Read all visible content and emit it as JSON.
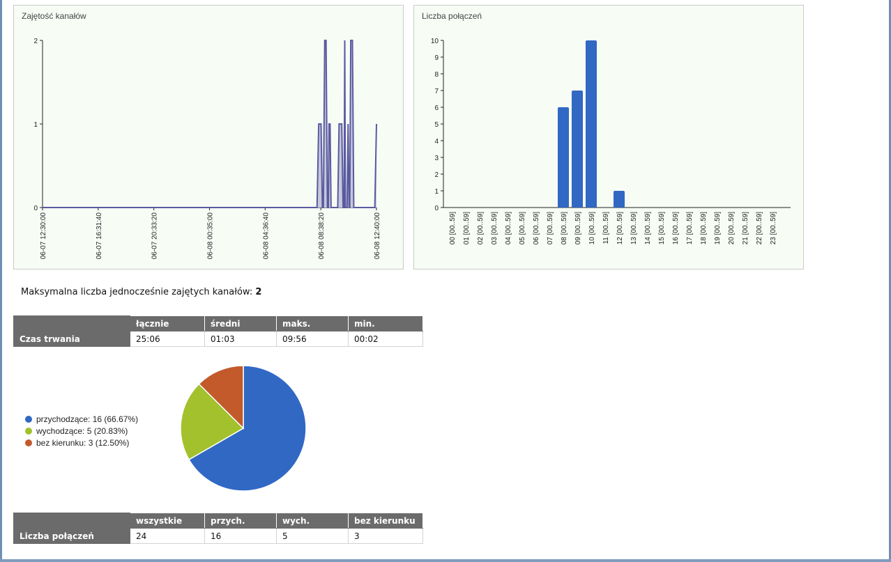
{
  "occupancy_panel": {
    "title": "Zajętość kanałów",
    "chart_data": {
      "type": "area",
      "yticks": [
        "0",
        "1",
        "2"
      ],
      "ylim": [
        0,
        2
      ],
      "xticks": [
        "06-07 12:30:00",
        "06-07 16:31:40",
        "06-07 20:33:20",
        "06-08 00:35:00",
        "06-08 04:36:40",
        "06-08 08:38:20",
        "06-08 12:40:00"
      ],
      "series_color": "#5a5aa0",
      "fill_color": "#c6c8dc",
      "points": [
        [
          0,
          0
        ],
        [
          0.822,
          0
        ],
        [
          0.827,
          1
        ],
        [
          0.834,
          1
        ],
        [
          0.838,
          0
        ],
        [
          0.841,
          0
        ],
        [
          0.845,
          2
        ],
        [
          0.849,
          2
        ],
        [
          0.853,
          0
        ],
        [
          0.856,
          0
        ],
        [
          0.858,
          1
        ],
        [
          0.861,
          1
        ],
        [
          0.864,
          0
        ],
        [
          0.884,
          0
        ],
        [
          0.888,
          1
        ],
        [
          0.896,
          1
        ],
        [
          0.9,
          0
        ],
        [
          0.903,
          0
        ],
        [
          0.905,
          2
        ],
        [
          0.907,
          0
        ],
        [
          0.912,
          0
        ],
        [
          0.915,
          1
        ],
        [
          0.918,
          0
        ],
        [
          0.92,
          0
        ],
        [
          0.923,
          2
        ],
        [
          0.928,
          2
        ],
        [
          0.932,
          0
        ],
        [
          0.949,
          0
        ],
        [
          0.995,
          0
        ],
        [
          1,
          1
        ]
      ]
    }
  },
  "connections_panel": {
    "title": "Liczba połączeń",
    "chart_data": {
      "type": "bar",
      "categories": [
        "00 [00..59]",
        "01 [00..59]",
        "02 [00..59]",
        "03 [00..59]",
        "04 [00..59]",
        "05 [00..59]",
        "06 [00..59]",
        "07 [00..59]",
        "08 [00..59]",
        "09 [00..59]",
        "10 [00..59]",
        "11 [00..59]",
        "12 [00..59]",
        "13 [00..59]",
        "14 [00..59]",
        "15 [00..59]",
        "16 [00..59]",
        "17 [00..59]",
        "18 [00..59]",
        "19 [00..59]",
        "20 [00..59]",
        "21 [00..59]",
        "22 [00..59]",
        "23 [00..59]"
      ],
      "values": [
        0,
        0,
        0,
        0,
        0,
        0,
        0,
        0,
        6,
        7,
        10,
        0,
        1,
        0,
        0,
        0,
        0,
        0,
        0,
        0,
        0,
        0,
        0,
        0
      ],
      "ylim": [
        0,
        10
      ],
      "yticks": [
        "0",
        "1",
        "2",
        "3",
        "4",
        "5",
        "6",
        "7",
        "8",
        "9",
        "10"
      ],
      "bar_color": "#3068c4"
    }
  },
  "max_channels": {
    "label": "Maksymalna liczba jednocześnie zajętych kanałów:",
    "value": "2"
  },
  "duration_table": {
    "headers": [
      "",
      "łącznie",
      "średni",
      "maks.",
      "min."
    ],
    "row_label": "Czas trwania",
    "values": [
      "25:06",
      "01:03",
      "09:56",
      "00:02"
    ]
  },
  "direction_pie": {
    "chart_data": {
      "type": "pie",
      "slices": [
        {
          "label": "przychodzące: 16 (66.67%)",
          "value": 16,
          "color": "#3068c4"
        },
        {
          "label": "wychodzące: 5 (20.83%)",
          "value": 5,
          "color": "#a3c12d"
        },
        {
          "label": "bez kierunku: 3 (12.50%)",
          "value": 3,
          "color": "#c25a2c"
        }
      ]
    }
  },
  "count_table": {
    "headers": [
      "",
      "wszystkie",
      "przych.",
      "wych.",
      "bez kierunku"
    ],
    "row_label": "Liczba połączeń",
    "values": [
      "24",
      "16",
      "5",
      "3"
    ]
  }
}
